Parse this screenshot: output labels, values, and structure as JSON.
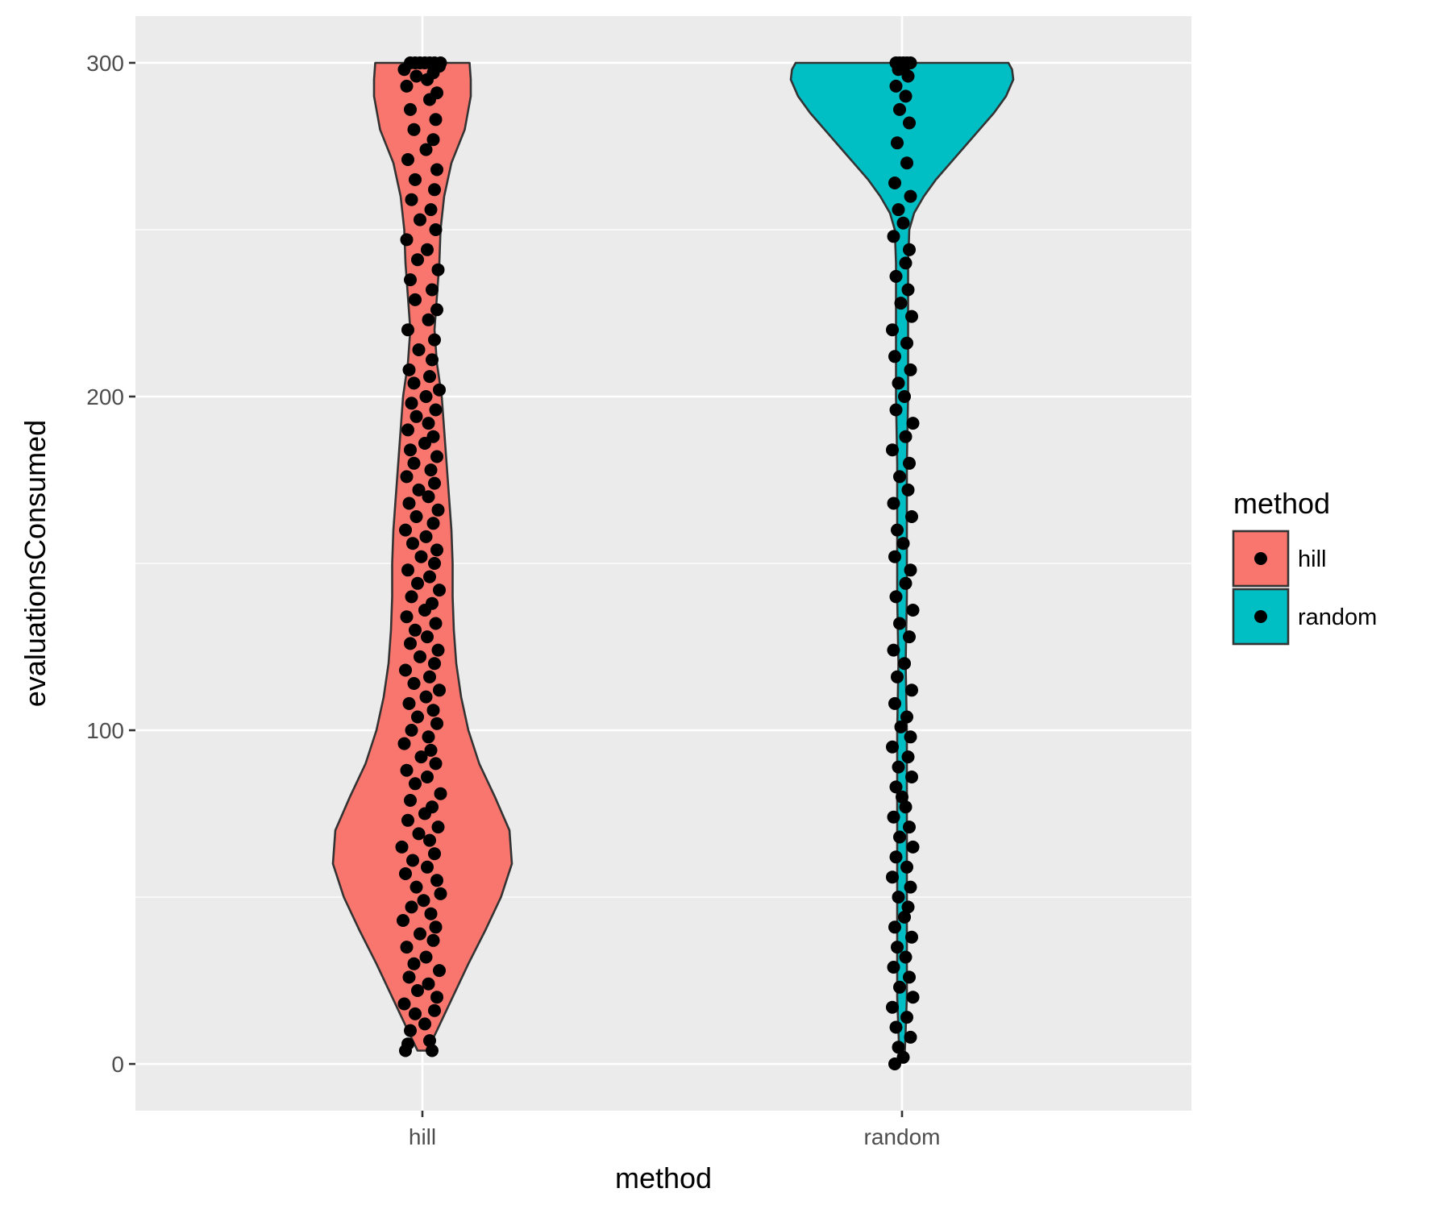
{
  "chart_data": {
    "type": "violin",
    "xlabel": "method",
    "ylabel": "evaluationsConsumed",
    "ylim": [
      -14,
      314
    ],
    "yticks": [
      0,
      100,
      200,
      300
    ],
    "y_minor_gridlines": [
      50,
      150,
      250
    ],
    "grid": true,
    "legend": {
      "title": "method",
      "position": "right"
    },
    "categories": [
      "hill",
      "random"
    ],
    "series": [
      {
        "name": "hill",
        "color": "#F8766D",
        "violin_outline": [
          [
            4,
            0.04
          ],
          [
            10,
            0.12
          ],
          [
            20,
            0.25
          ],
          [
            30,
            0.38
          ],
          [
            40,
            0.52
          ],
          [
            50,
            0.65
          ],
          [
            60,
            0.74
          ],
          [
            70,
            0.72
          ],
          [
            80,
            0.6
          ],
          [
            90,
            0.47
          ],
          [
            100,
            0.38
          ],
          [
            110,
            0.32
          ],
          [
            120,
            0.28
          ],
          [
            130,
            0.26
          ],
          [
            140,
            0.25
          ],
          [
            150,
            0.25
          ],
          [
            160,
            0.24
          ],
          [
            170,
            0.22
          ],
          [
            180,
            0.2
          ],
          [
            190,
            0.18
          ],
          [
            200,
            0.16
          ],
          [
            210,
            0.12
          ],
          [
            220,
            0.1
          ],
          [
            230,
            0.12
          ],
          [
            240,
            0.14
          ],
          [
            250,
            0.15
          ],
          [
            260,
            0.18
          ],
          [
            270,
            0.24
          ],
          [
            280,
            0.35
          ],
          [
            290,
            0.4
          ],
          [
            295,
            0.4
          ],
          [
            300,
            0.39
          ]
        ],
        "points": [
          [
            -0.14,
            4
          ],
          [
            0.08,
            4
          ],
          [
            -0.12,
            6
          ],
          [
            0.06,
            7
          ],
          [
            -0.1,
            10
          ],
          [
            0.02,
            12
          ],
          [
            -0.06,
            15
          ],
          [
            0.1,
            16
          ],
          [
            -0.15,
            18
          ],
          [
            0.12,
            20
          ],
          [
            -0.04,
            22
          ],
          [
            0.05,
            24
          ],
          [
            -0.11,
            26
          ],
          [
            0.14,
            28
          ],
          [
            -0.07,
            30
          ],
          [
            0.03,
            32
          ],
          [
            -0.13,
            35
          ],
          [
            0.09,
            37
          ],
          [
            -0.02,
            39
          ],
          [
            0.11,
            41
          ],
          [
            -0.16,
            43
          ],
          [
            0.07,
            45
          ],
          [
            -0.09,
            47
          ],
          [
            0.01,
            49
          ],
          [
            0.15,
            51
          ],
          [
            -0.05,
            53
          ],
          [
            0.12,
            55
          ],
          [
            -0.14,
            57
          ],
          [
            0.04,
            59
          ],
          [
            -0.08,
            61
          ],
          [
            0.1,
            63
          ],
          [
            -0.17,
            65
          ],
          [
            0.06,
            67
          ],
          [
            -0.03,
            69
          ],
          [
            0.13,
            71
          ],
          [
            -0.12,
            73
          ],
          [
            0.02,
            75
          ],
          [
            0.08,
            77
          ],
          [
            -0.1,
            79
          ],
          [
            0.15,
            81
          ],
          [
            -0.06,
            84
          ],
          [
            0.04,
            86
          ],
          [
            -0.13,
            88
          ],
          [
            0.11,
            90
          ],
          [
            -0.01,
            92
          ],
          [
            0.07,
            94
          ],
          [
            -0.15,
            96
          ],
          [
            0.05,
            98
          ],
          [
            -0.09,
            100
          ],
          [
            0.12,
            102
          ],
          [
            -0.04,
            104
          ],
          [
            0.09,
            106
          ],
          [
            -0.11,
            108
          ],
          [
            0.03,
            110
          ],
          [
            0.14,
            112
          ],
          [
            -0.07,
            114
          ],
          [
            0.06,
            116
          ],
          [
            -0.14,
            118
          ],
          [
            0.1,
            120
          ],
          [
            -0.02,
            122
          ],
          [
            0.13,
            124
          ],
          [
            -0.1,
            126
          ],
          [
            0.04,
            128
          ],
          [
            -0.06,
            130
          ],
          [
            0.11,
            132
          ],
          [
            -0.13,
            134
          ],
          [
            0.02,
            136
          ],
          [
            0.08,
            138
          ],
          [
            -0.09,
            140
          ],
          [
            0.14,
            142
          ],
          [
            -0.04,
            144
          ],
          [
            0.06,
            146
          ],
          [
            -0.12,
            148
          ],
          [
            0.1,
            150
          ],
          [
            -0.01,
            152
          ],
          [
            0.12,
            154
          ],
          [
            -0.08,
            156
          ],
          [
            0.03,
            158
          ],
          [
            -0.14,
            160
          ],
          [
            0.09,
            162
          ],
          [
            -0.05,
            164
          ],
          [
            0.13,
            166
          ],
          [
            -0.11,
            168
          ],
          [
            0.05,
            170
          ],
          [
            -0.03,
            172
          ],
          [
            0.1,
            174
          ],
          [
            -0.13,
            176
          ],
          [
            0.07,
            178
          ],
          [
            -0.07,
            180
          ],
          [
            0.12,
            182
          ],
          [
            -0.1,
            184
          ],
          [
            0.02,
            186
          ],
          [
            0.09,
            188
          ],
          [
            -0.12,
            190
          ],
          [
            0.05,
            192
          ],
          [
            -0.05,
            194
          ],
          [
            0.11,
            196
          ],
          [
            -0.09,
            198
          ],
          [
            0.03,
            200
          ],
          [
            0.14,
            202
          ],
          [
            -0.07,
            204
          ],
          [
            0.06,
            206
          ],
          [
            -0.11,
            208
          ],
          [
            0.08,
            211
          ],
          [
            -0.03,
            214
          ],
          [
            0.1,
            217
          ],
          [
            -0.12,
            220
          ],
          [
            0.05,
            223
          ],
          [
            0.12,
            226
          ],
          [
            -0.06,
            229
          ],
          [
            0.08,
            232
          ],
          [
            -0.1,
            235
          ],
          [
            0.13,
            238
          ],
          [
            -0.04,
            241
          ],
          [
            0.04,
            244
          ],
          [
            -0.13,
            247
          ],
          [
            0.11,
            250
          ],
          [
            -0.02,
            253
          ],
          [
            0.07,
            256
          ],
          [
            -0.09,
            259
          ],
          [
            0.1,
            262
          ],
          [
            -0.06,
            265
          ],
          [
            0.12,
            268
          ],
          [
            -0.12,
            271
          ],
          [
            0.03,
            274
          ],
          [
            0.09,
            277
          ],
          [
            -0.07,
            280
          ],
          [
            0.11,
            283
          ],
          [
            -0.1,
            286
          ],
          [
            0.06,
            289
          ],
          [
            0.12,
            291
          ],
          [
            -0.13,
            293
          ],
          [
            0.04,
            295
          ],
          [
            -0.05,
            296
          ],
          [
            0.09,
            297
          ],
          [
            -0.15,
            298
          ],
          [
            0.14,
            299
          ],
          [
            -0.1,
            300
          ],
          [
            -0.06,
            300
          ],
          [
            -0.02,
            300
          ],
          [
            0.02,
            300
          ],
          [
            0.06,
            300
          ],
          [
            0.1,
            300
          ],
          [
            0.15,
            300
          ]
        ]
      },
      {
        "name": "random",
        "color": "#00BFC4",
        "violin_outline": [
          [
            1,
            0.02
          ],
          [
            10,
            0.03
          ],
          [
            20,
            0.04
          ],
          [
            40,
            0.04
          ],
          [
            60,
            0.04
          ],
          [
            80,
            0.04
          ],
          [
            100,
            0.04
          ],
          [
            120,
            0.03
          ],
          [
            140,
            0.04
          ],
          [
            160,
            0.04
          ],
          [
            180,
            0.04
          ],
          [
            200,
            0.05
          ],
          [
            220,
            0.05
          ],
          [
            240,
            0.05
          ],
          [
            250,
            0.06
          ],
          [
            255,
            0.1
          ],
          [
            260,
            0.18
          ],
          [
            265,
            0.28
          ],
          [
            270,
            0.4
          ],
          [
            275,
            0.52
          ],
          [
            280,
            0.64
          ],
          [
            285,
            0.76
          ],
          [
            290,
            0.86
          ],
          [
            295,
            0.92
          ],
          [
            298,
            0.91
          ],
          [
            300,
            0.88
          ]
        ],
        "points": [
          [
            -0.06,
            0
          ],
          [
            0.01,
            2
          ],
          [
            -0.03,
            5
          ],
          [
            0.07,
            8
          ],
          [
            -0.05,
            11
          ],
          [
            0.04,
            14
          ],
          [
            -0.08,
            17
          ],
          [
            0.09,
            20
          ],
          [
            -0.02,
            23
          ],
          [
            0.06,
            26
          ],
          [
            -0.07,
            29
          ],
          [
            0.03,
            32
          ],
          [
            -0.04,
            35
          ],
          [
            0.08,
            38
          ],
          [
            -0.06,
            41
          ],
          [
            0.02,
            44
          ],
          [
            0.05,
            47
          ],
          [
            -0.03,
            50
          ],
          [
            0.07,
            53
          ],
          [
            -0.08,
            56
          ],
          [
            0.04,
            59
          ],
          [
            -0.05,
            62
          ],
          [
            0.09,
            65
          ],
          [
            -0.02,
            68
          ],
          [
            0.06,
            71
          ],
          [
            -0.07,
            74
          ],
          [
            0.03,
            77
          ],
          [
            0.0,
            80
          ],
          [
            -0.05,
            83
          ],
          [
            0.08,
            86
          ],
          [
            -0.03,
            89
          ],
          [
            0.05,
            92
          ],
          [
            -0.08,
            95
          ],
          [
            0.07,
            98
          ],
          [
            -0.01,
            101
          ],
          [
            0.04,
            104
          ],
          [
            -0.06,
            108
          ],
          [
            0.08,
            112
          ],
          [
            -0.04,
            116
          ],
          [
            0.02,
            120
          ],
          [
            -0.07,
            124
          ],
          [
            0.06,
            128
          ],
          [
            -0.02,
            132
          ],
          [
            0.09,
            136
          ],
          [
            -0.05,
            140
          ],
          [
            0.03,
            144
          ],
          [
            0.07,
            148
          ],
          [
            -0.06,
            152
          ],
          [
            0.01,
            156
          ],
          [
            -0.04,
            160
          ],
          [
            0.08,
            164
          ],
          [
            -0.07,
            168
          ],
          [
            0.05,
            172
          ],
          [
            -0.02,
            176
          ],
          [
            0.06,
            180
          ],
          [
            -0.08,
            184
          ],
          [
            0.03,
            188
          ],
          [
            0.09,
            192
          ],
          [
            -0.05,
            196
          ],
          [
            0.02,
            200
          ],
          [
            -0.03,
            204
          ],
          [
            0.07,
            208
          ],
          [
            -0.06,
            212
          ],
          [
            0.04,
            216
          ],
          [
            -0.08,
            220
          ],
          [
            0.08,
            224
          ],
          [
            -0.01,
            228
          ],
          [
            0.05,
            232
          ],
          [
            -0.05,
            236
          ],
          [
            0.03,
            240
          ],
          [
            0.06,
            244
          ],
          [
            -0.07,
            248
          ],
          [
            0.01,
            252
          ],
          [
            -0.03,
            256
          ],
          [
            0.07,
            260
          ],
          [
            -0.06,
            264
          ],
          [
            0.04,
            270
          ],
          [
            -0.04,
            276
          ],
          [
            0.06,
            282
          ],
          [
            -0.02,
            286
          ],
          [
            0.03,
            290
          ],
          [
            -0.05,
            293
          ],
          [
            0.05,
            296
          ],
          [
            -0.03,
            298
          ],
          [
            0.02,
            299
          ],
          [
            -0.05,
            300
          ],
          [
            -0.02,
            300
          ],
          [
            0.01,
            300
          ],
          [
            0.04,
            300
          ],
          [
            0.07,
            300
          ]
        ]
      }
    ]
  }
}
